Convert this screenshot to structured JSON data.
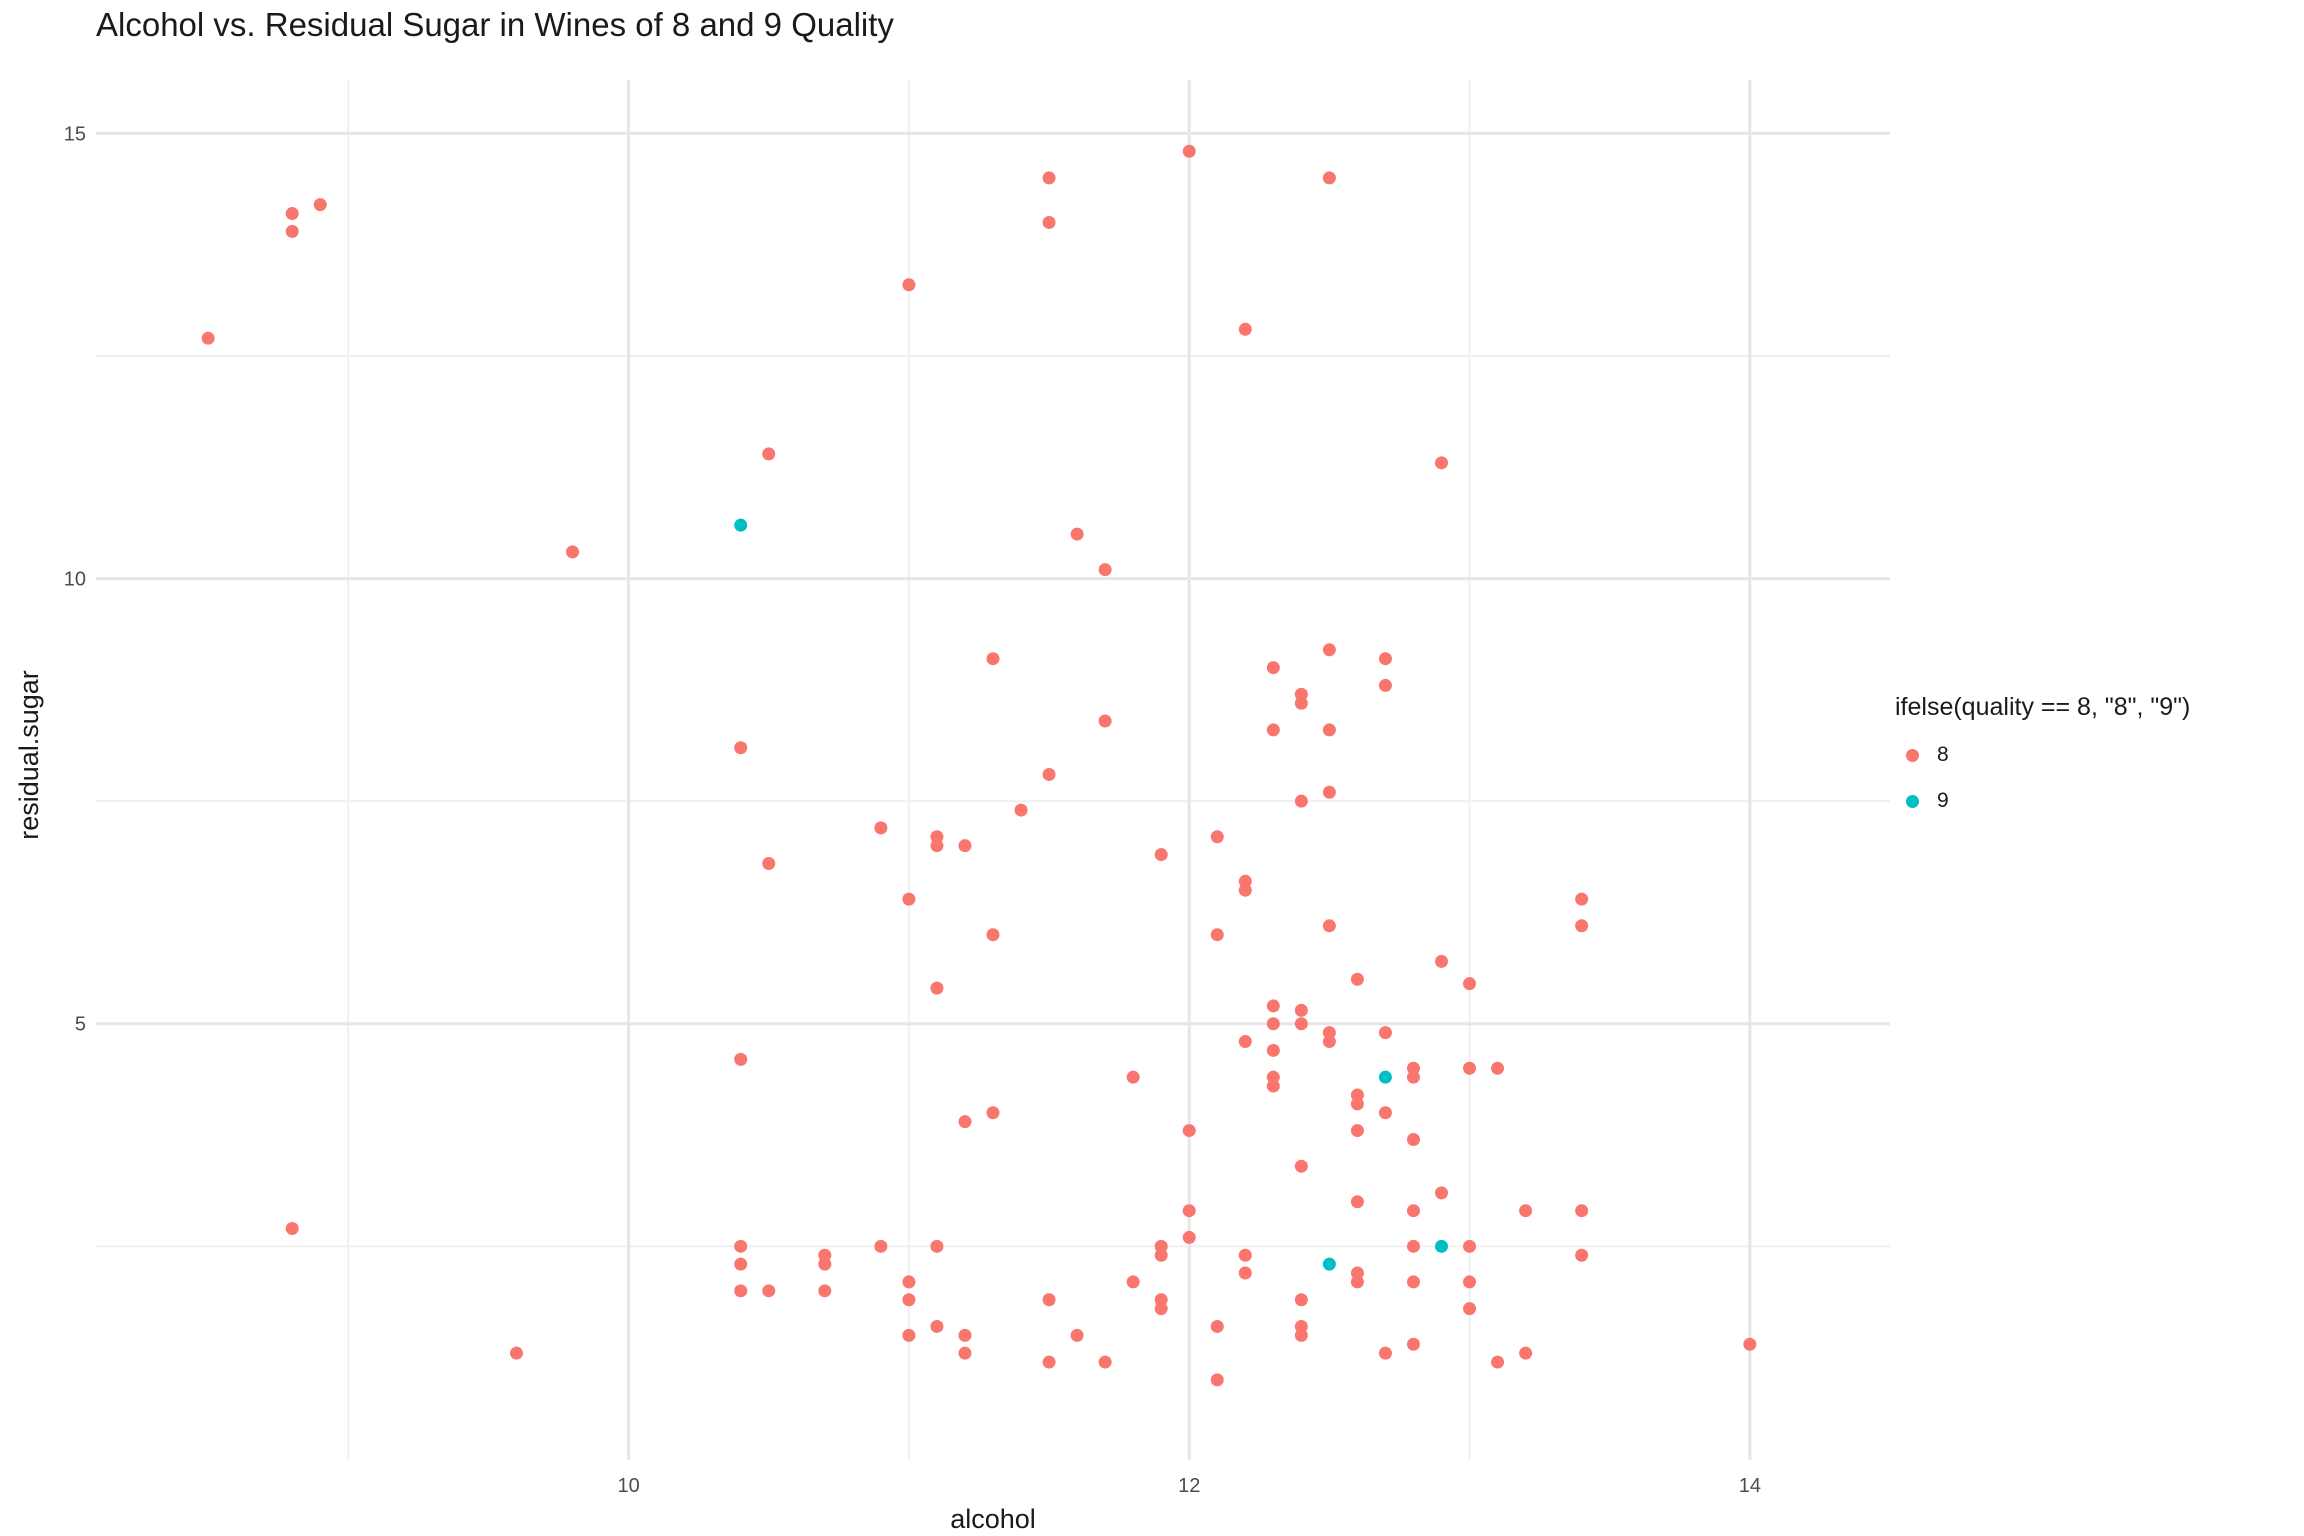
{
  "chart_data": {
    "type": "scatter",
    "title": "Alcohol vs. Residual Sugar in Wines of 8 and 9 Quality",
    "xlabel": "alcohol",
    "ylabel": "residual.sugar",
    "xlim": [
      8.1,
      14.5
    ],
    "ylim": [
      0.1,
      15.6
    ],
    "x_ticks": [
      10,
      12,
      14
    ],
    "x_tick_labels": [
      "10",
      "12",
      "14"
    ],
    "y_ticks": [
      5,
      10,
      15
    ],
    "y_tick_labels": [
      "5",
      "10",
      "15"
    ],
    "x_minor": [
      9,
      11,
      13
    ],
    "y_minor": [
      2.5,
      7.5,
      12.5
    ],
    "grid": true,
    "legend": {
      "title": "ifelse(quality == 8, \"8\", \"9\")",
      "position": "right",
      "entries": [
        {
          "label": "8",
          "color": "#F8766D"
        },
        {
          "label": "9",
          "color": "#00BFC4"
        }
      ]
    },
    "series": [
      {
        "name": "8",
        "color": "#F8766D",
        "points": [
          [
            8.5,
            12.7
          ],
          [
            8.8,
            14.1
          ],
          [
            8.8,
            13.9
          ],
          [
            8.9,
            14.2
          ],
          [
            8.8,
            2.7
          ],
          [
            9.6,
            1.3
          ],
          [
            9.8,
            10.3
          ],
          [
            10.4,
            8.1
          ],
          [
            10.4,
            4.6
          ],
          [
            10.4,
            2.5
          ],
          [
            10.4,
            2.3
          ],
          [
            10.4,
            2.0
          ],
          [
            10.5,
            2.0
          ],
          [
            10.5,
            11.4
          ],
          [
            10.5,
            6.8
          ],
          [
            10.7,
            2.4
          ],
          [
            10.7,
            2.3
          ],
          [
            10.7,
            2.0
          ],
          [
            10.9,
            7.2
          ],
          [
            10.9,
            2.5
          ],
          [
            11.0,
            13.3
          ],
          [
            11.0,
            6.4
          ],
          [
            11.0,
            2.1
          ],
          [
            11.0,
            1.9
          ],
          [
            11.0,
            1.5
          ],
          [
            11.1,
            7.1
          ],
          [
            11.1,
            7.0
          ],
          [
            11.1,
            5.4
          ],
          [
            11.1,
            2.5
          ],
          [
            11.1,
            1.6
          ],
          [
            11.2,
            7.0
          ],
          [
            11.2,
            3.9
          ],
          [
            11.2,
            1.5
          ],
          [
            11.2,
            1.3
          ],
          [
            11.3,
            9.1
          ],
          [
            11.3,
            6.0
          ],
          [
            11.3,
            4.0
          ],
          [
            11.4,
            7.4
          ],
          [
            11.5,
            14.5
          ],
          [
            11.5,
            14.0
          ],
          [
            11.5,
            7.8
          ],
          [
            11.5,
            1.9
          ],
          [
            11.5,
            1.2
          ],
          [
            11.6,
            10.5
          ],
          [
            11.6,
            1.5
          ],
          [
            11.7,
            10.1
          ],
          [
            11.7,
            8.4
          ],
          [
            11.7,
            1.2
          ],
          [
            11.8,
            4.4
          ],
          [
            11.8,
            2.1
          ],
          [
            11.9,
            6.9
          ],
          [
            11.9,
            2.5
          ],
          [
            11.9,
            2.4
          ],
          [
            11.9,
            1.9
          ],
          [
            11.9,
            1.8
          ],
          [
            12.0,
            14.8
          ],
          [
            12.0,
            3.8
          ],
          [
            12.0,
            2.9
          ],
          [
            12.0,
            2.6
          ],
          [
            12.1,
            7.1
          ],
          [
            12.1,
            6.0
          ],
          [
            12.1,
            1.6
          ],
          [
            12.1,
            1.0
          ],
          [
            12.2,
            12.8
          ],
          [
            12.2,
            6.6
          ],
          [
            12.2,
            6.5
          ],
          [
            12.2,
            4.8
          ],
          [
            12.2,
            2.4
          ],
          [
            12.2,
            2.2
          ],
          [
            12.3,
            9.0
          ],
          [
            12.3,
            8.3
          ],
          [
            12.3,
            5.2
          ],
          [
            12.3,
            5.0
          ],
          [
            12.3,
            4.7
          ],
          [
            12.3,
            4.4
          ],
          [
            12.3,
            4.3
          ],
          [
            12.4,
            8.7
          ],
          [
            12.4,
            8.6
          ],
          [
            12.4,
            7.5
          ],
          [
            12.4,
            5.15
          ],
          [
            12.4,
            5.0
          ],
          [
            12.4,
            3.4
          ],
          [
            12.4,
            1.9
          ],
          [
            12.4,
            1.6
          ],
          [
            12.4,
            1.5
          ],
          [
            12.5,
            14.5
          ],
          [
            12.5,
            9.2
          ],
          [
            12.5,
            8.3
          ],
          [
            12.5,
            7.6
          ],
          [
            12.5,
            6.1
          ],
          [
            12.5,
            4.8
          ],
          [
            12.5,
            4.9
          ],
          [
            12.6,
            5.5
          ],
          [
            12.6,
            4.2
          ],
          [
            12.6,
            4.1
          ],
          [
            12.6,
            3.8
          ],
          [
            12.6,
            3.0
          ],
          [
            12.6,
            2.2
          ],
          [
            12.6,
            2.1
          ],
          [
            12.7,
            9.1
          ],
          [
            12.7,
            8.8
          ],
          [
            12.7,
            4.9
          ],
          [
            12.7,
            4.0
          ],
          [
            12.7,
            1.3
          ],
          [
            12.8,
            4.5
          ],
          [
            12.8,
            4.4
          ],
          [
            12.8,
            3.7
          ],
          [
            12.8,
            2.9
          ],
          [
            12.8,
            2.5
          ],
          [
            12.8,
            2.1
          ],
          [
            12.8,
            1.4
          ],
          [
            12.9,
            11.3
          ],
          [
            12.9,
            5.7
          ],
          [
            12.9,
            3.1
          ],
          [
            13.0,
            5.45
          ],
          [
            13.0,
            4.5
          ],
          [
            13.0,
            2.5
          ],
          [
            13.0,
            2.1
          ],
          [
            13.0,
            1.8
          ],
          [
            13.1,
            4.5
          ],
          [
            13.1,
            1.2
          ],
          [
            13.2,
            2.9
          ],
          [
            13.2,
            1.3
          ],
          [
            13.4,
            6.4
          ],
          [
            13.4,
            6.1
          ],
          [
            13.4,
            2.9
          ],
          [
            13.4,
            2.4
          ],
          [
            14.0,
            1.4
          ]
        ]
      },
      {
        "name": "9",
        "color": "#00BFC4",
        "points": [
          [
            10.4,
            10.6
          ],
          [
            12.5,
            2.3
          ],
          [
            12.7,
            4.4
          ],
          [
            12.9,
            2.5
          ]
        ]
      }
    ]
  }
}
